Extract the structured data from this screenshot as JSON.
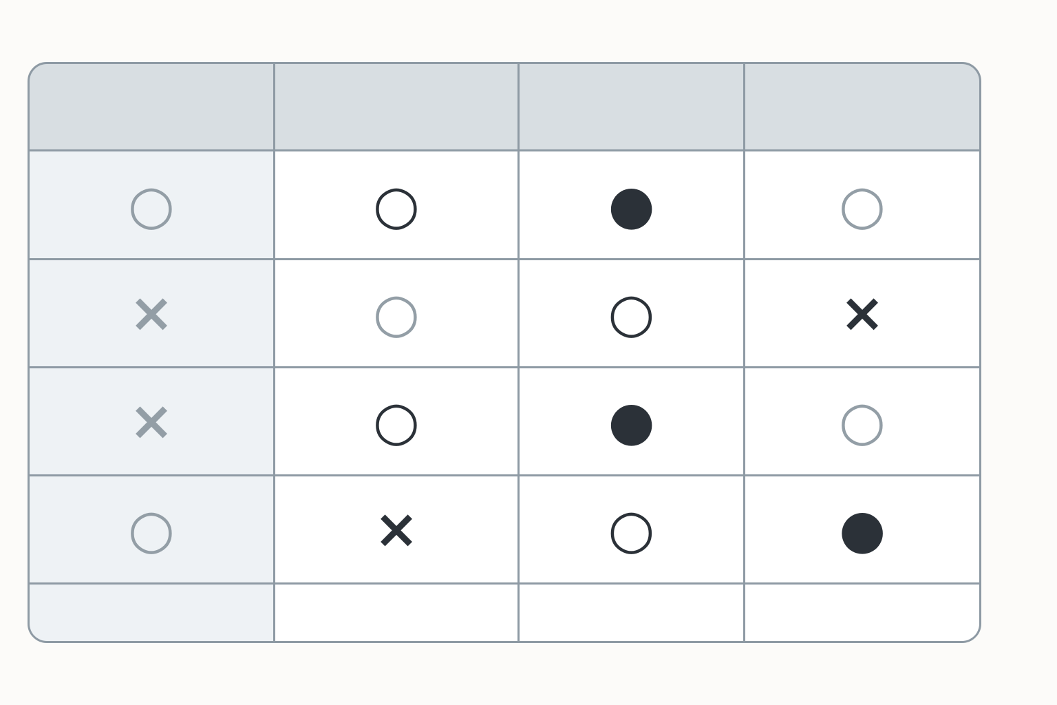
{
  "table": {
    "rows": [
      [
        "○",
        "○",
        "●",
        "○"
      ],
      [
        "×",
        "○",
        "○",
        "×"
      ],
      [
        "×",
        "○",
        "●",
        "○"
      ],
      [
        "○",
        "×",
        "○",
        "●"
      ]
    ]
  }
}
